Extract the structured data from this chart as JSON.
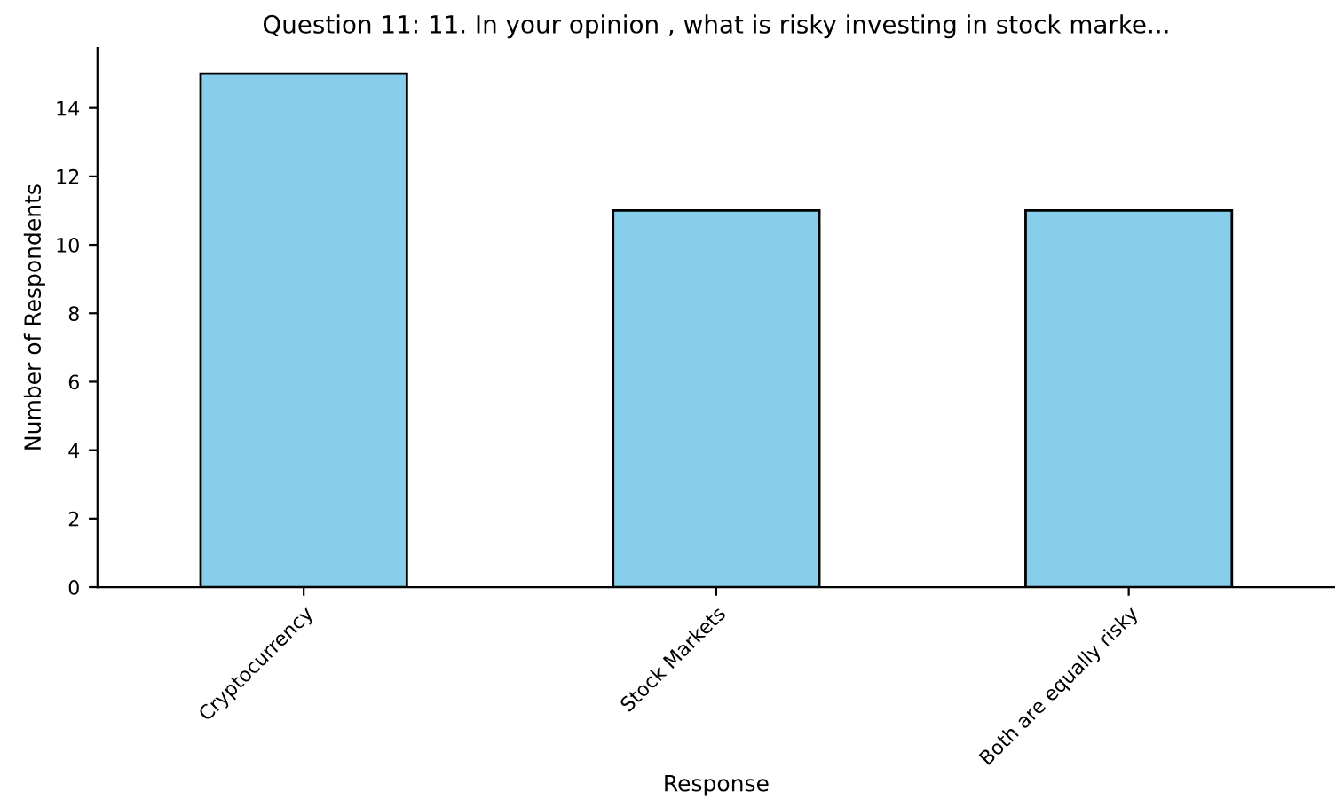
{
  "chart_data": {
    "type": "bar",
    "title": "Question 11: 11. In your opinion , what is risky investing in stock marke...",
    "xlabel": "Response",
    "ylabel": "Number of Respondents",
    "categories": [
      "Cryptocurrency",
      "Stock Markets",
      "Both are equally risky"
    ],
    "series": [
      {
        "color": "#87ceeb",
        "values": [
          15,
          11,
          11
        ]
      }
    ],
    "ylim": [
      0,
      15.75
    ],
    "yticks": [
      0,
      2,
      4,
      6,
      8,
      10,
      12,
      14
    ],
    "grid": false
  }
}
